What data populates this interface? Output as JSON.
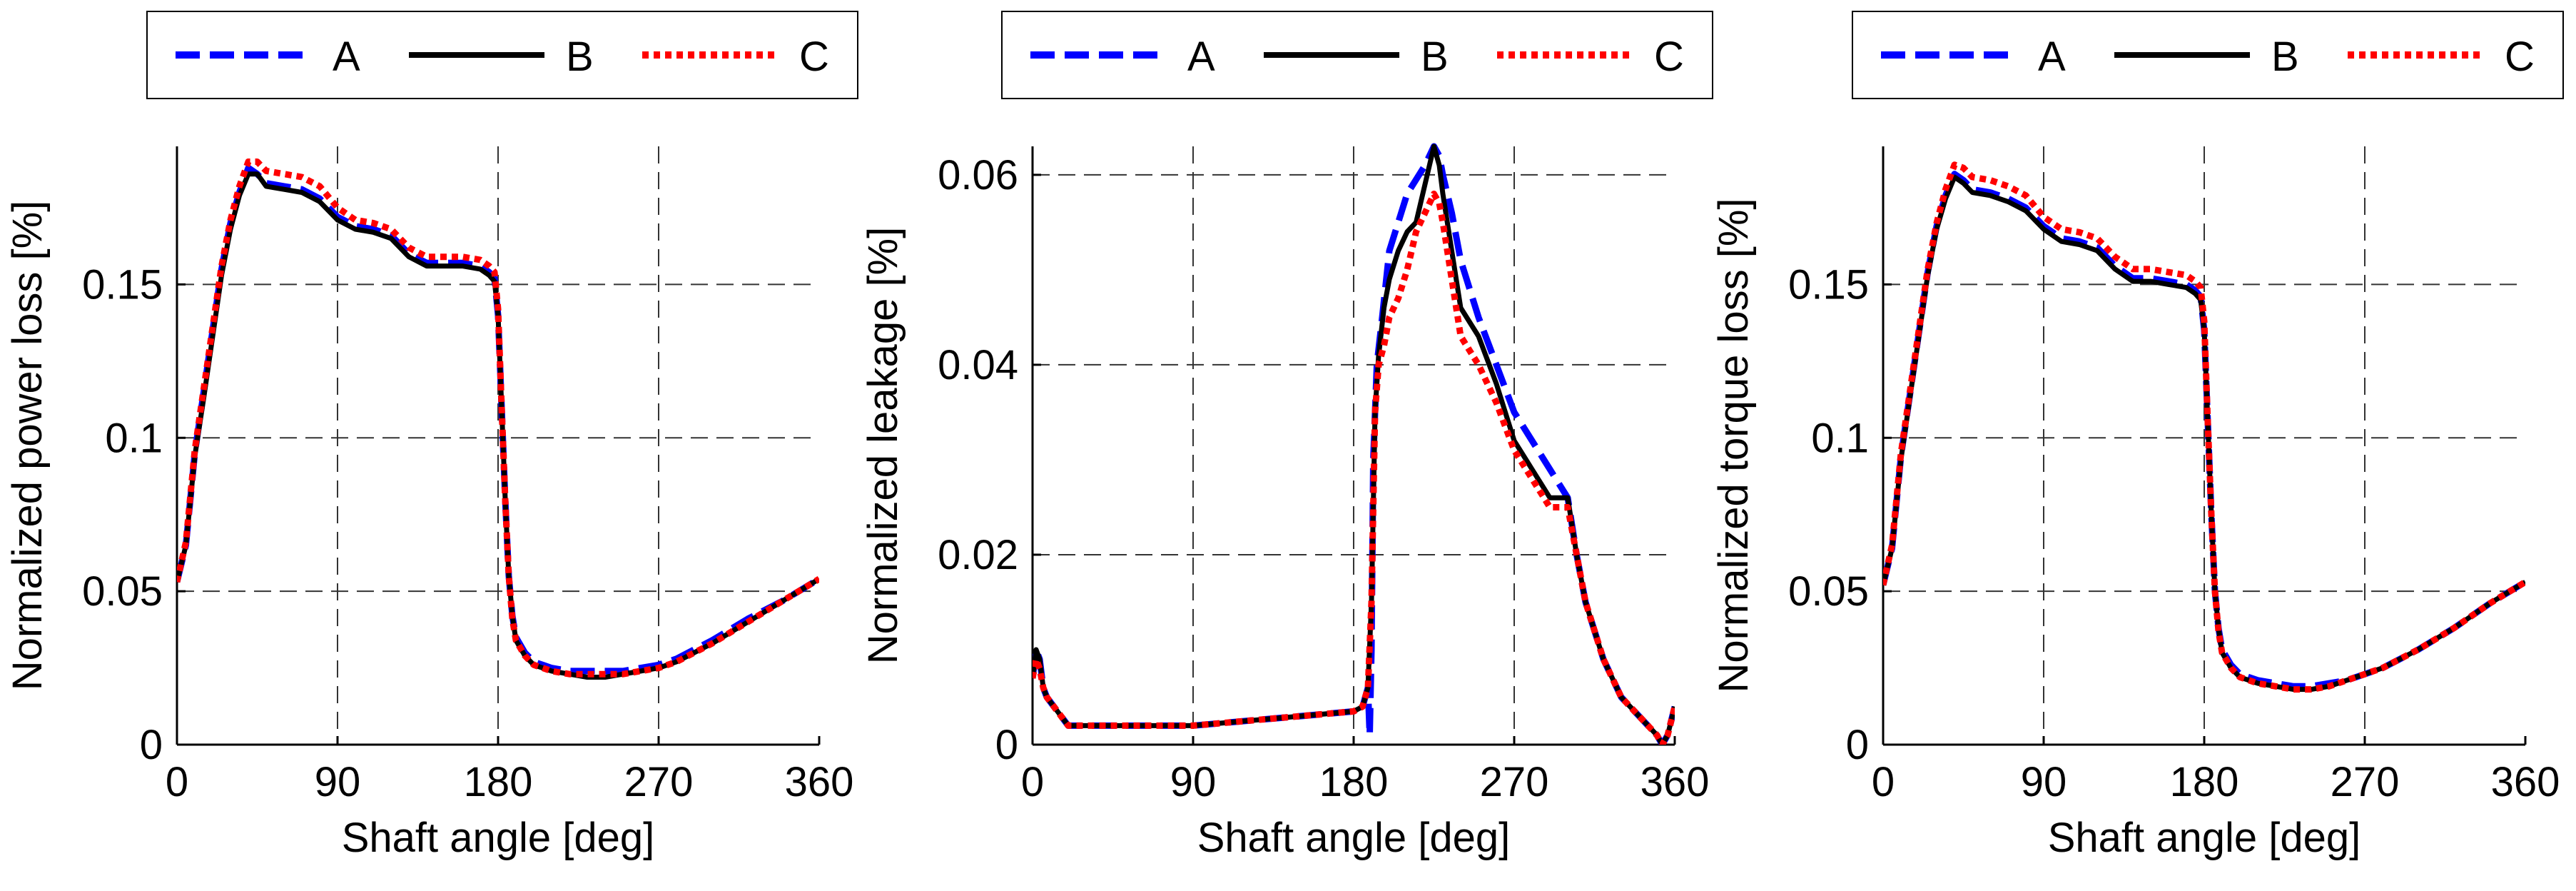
{
  "chart_data": [
    {
      "type": "line",
      "xlabel": "Shaft angle [deg]",
      "ylabel": "Normalized power loss [%]",
      "xlim": [
        0,
        360
      ],
      "ylim": [
        0,
        0.195
      ],
      "xticks": [
        0,
        90,
        180,
        270,
        360
      ],
      "yticks": [
        0,
        0.05,
        0.1,
        0.15
      ],
      "ytick_labels": [
        "0",
        "0.05",
        "0.1",
        "0.15"
      ],
      "grid": true,
      "legend": "top, horizontal, outside plot",
      "series": [
        {
          "name": "A",
          "color": "#0000ff",
          "style": "dashed",
          "x": [
            0,
            5,
            10,
            15,
            20,
            25,
            30,
            35,
            40,
            45,
            50,
            60,
            70,
            80,
            90,
            100,
            110,
            120,
            130,
            140,
            150,
            160,
            170,
            175,
            178,
            180,
            182,
            184,
            186,
            188,
            190,
            195,
            200,
            210,
            220,
            230,
            240,
            250,
            260,
            270,
            280,
            300,
            320,
            340,
            360
          ],
          "y": [
            0.053,
            0.065,
            0.095,
            0.115,
            0.135,
            0.155,
            0.17,
            0.18,
            0.188,
            0.186,
            0.183,
            0.182,
            0.181,
            0.178,
            0.172,
            0.169,
            0.168,
            0.166,
            0.16,
            0.157,
            0.157,
            0.157,
            0.156,
            0.154,
            0.152,
            0.14,
            0.11,
            0.08,
            0.055,
            0.042,
            0.035,
            0.03,
            0.027,
            0.025,
            0.024,
            0.024,
            0.024,
            0.024,
            0.025,
            0.026,
            0.028,
            0.034,
            0.041,
            0.047,
            0.054
          ]
        },
        {
          "name": "B",
          "color": "#000000",
          "style": "solid",
          "x": [
            0,
            5,
            10,
            15,
            20,
            25,
            30,
            35,
            40,
            45,
            50,
            60,
            70,
            80,
            90,
            100,
            110,
            120,
            130,
            140,
            150,
            160,
            170,
            175,
            178,
            180,
            182,
            184,
            186,
            188,
            190,
            195,
            200,
            210,
            220,
            230,
            240,
            250,
            260,
            270,
            280,
            300,
            320,
            340,
            360
          ],
          "y": [
            0.053,
            0.065,
            0.094,
            0.113,
            0.133,
            0.153,
            0.168,
            0.179,
            0.186,
            0.186,
            0.182,
            0.181,
            0.18,
            0.177,
            0.171,
            0.168,
            0.167,
            0.165,
            0.159,
            0.156,
            0.156,
            0.156,
            0.155,
            0.153,
            0.151,
            0.14,
            0.11,
            0.08,
            0.055,
            0.042,
            0.034,
            0.029,
            0.026,
            0.024,
            0.023,
            0.022,
            0.022,
            0.023,
            0.024,
            0.025,
            0.027,
            0.033,
            0.04,
            0.047,
            0.054
          ]
        },
        {
          "name": "C",
          "color": "#ff0000",
          "style": "dotted",
          "x": [
            0,
            5,
            10,
            15,
            20,
            25,
            30,
            35,
            40,
            45,
            50,
            60,
            70,
            80,
            90,
            100,
            110,
            120,
            130,
            140,
            150,
            160,
            170,
            175,
            178,
            180,
            182,
            184,
            186,
            188,
            190,
            195,
            200,
            210,
            220,
            230,
            240,
            250,
            260,
            270,
            280,
            300,
            320,
            340,
            360
          ],
          "y": [
            0.053,
            0.066,
            0.096,
            0.116,
            0.136,
            0.156,
            0.171,
            0.182,
            0.19,
            0.19,
            0.187,
            0.186,
            0.185,
            0.182,
            0.175,
            0.171,
            0.17,
            0.168,
            0.162,
            0.159,
            0.159,
            0.159,
            0.158,
            0.156,
            0.154,
            0.142,
            0.11,
            0.08,
            0.055,
            0.041,
            0.034,
            0.029,
            0.026,
            0.024,
            0.023,
            0.023,
            0.023,
            0.023,
            0.024,
            0.025,
            0.027,
            0.033,
            0.04,
            0.047,
            0.054
          ]
        }
      ]
    },
    {
      "type": "line",
      "xlabel": "Shaft angle [deg]",
      "ylabel": "Normalized leakage [%]",
      "xlim": [
        0,
        360
      ],
      "ylim": [
        0,
        0.063
      ],
      "xticks": [
        0,
        90,
        180,
        270,
        360
      ],
      "yticks": [
        0,
        0.02,
        0.04,
        0.06
      ],
      "ytick_labels": [
        "0",
        "0.02",
        "0.04",
        "0.06"
      ],
      "grid": true,
      "legend": "top, horizontal, outside plot",
      "series": [
        {
          "name": "A",
          "color": "#0000ff",
          "style": "dashed",
          "x": [
            0,
            2,
            4,
            6,
            8,
            12,
            20,
            30,
            60,
            90,
            120,
            150,
            180,
            185,
            188,
            189,
            190,
            191,
            193,
            196,
            200,
            210,
            220,
            225,
            228,
            230,
            235,
            240,
            250,
            260,
            270,
            280,
            290,
            300,
            305,
            310,
            320,
            330,
            340,
            350,
            353,
            356,
            360
          ],
          "y": [
            0.007,
            0.01,
            0.009,
            0.006,
            0.005,
            0.004,
            0.002,
            0.002,
            0.002,
            0.002,
            0.0025,
            0.003,
            0.0035,
            0.004,
            0.006,
            0.001,
            0.01,
            0.03,
            0.04,
            0.045,
            0.052,
            0.058,
            0.061,
            0.063,
            0.062,
            0.06,
            0.056,
            0.051,
            0.045,
            0.04,
            0.035,
            0.032,
            0.029,
            0.026,
            0.02,
            0.015,
            0.009,
            0.005,
            0.003,
            0.001,
            0,
            0.001,
            0.004
          ]
        },
        {
          "name": "B",
          "color": "#000000",
          "style": "solid",
          "x": [
            0,
            2,
            4,
            6,
            8,
            12,
            20,
            30,
            60,
            90,
            120,
            150,
            180,
            185,
            188,
            190,
            192,
            194,
            197,
            200,
            205,
            210,
            215,
            220,
            225,
            228,
            230,
            235,
            240,
            250,
            260,
            270,
            280,
            290,
            300,
            305,
            310,
            320,
            330,
            340,
            350,
            353,
            356,
            360
          ],
          "y": [
            0.007,
            0.01,
            0.009,
            0.006,
            0.005,
            0.004,
            0.002,
            0.002,
            0.002,
            0.002,
            0.0025,
            0.003,
            0.0035,
            0.004,
            0.006,
            0.015,
            0.035,
            0.041,
            0.046,
            0.049,
            0.052,
            0.054,
            0.055,
            0.059,
            0.063,
            0.061,
            0.058,
            0.052,
            0.046,
            0.043,
            0.038,
            0.032,
            0.029,
            0.026,
            0.026,
            0.02,
            0.015,
            0.009,
            0.005,
            0.003,
            0.001,
            0,
            0.001,
            0.004
          ]
        },
        {
          "name": "C",
          "color": "#ff0000",
          "style": "dotted",
          "x": [
            0,
            2,
            4,
            6,
            8,
            12,
            20,
            30,
            60,
            90,
            120,
            150,
            180,
            185,
            188,
            190,
            192,
            194,
            197,
            200,
            205,
            210,
            215,
            220,
            225,
            228,
            230,
            235,
            240,
            250,
            260,
            270,
            280,
            290,
            300,
            305,
            310,
            320,
            330,
            340,
            350,
            353,
            356,
            360
          ],
          "y": [
            0.007,
            0.009,
            0.008,
            0.006,
            0.005,
            0.004,
            0.002,
            0.002,
            0.002,
            0.002,
            0.0025,
            0.003,
            0.0035,
            0.004,
            0.006,
            0.015,
            0.035,
            0.04,
            0.042,
            0.045,
            0.047,
            0.05,
            0.054,
            0.056,
            0.058,
            0.057,
            0.055,
            0.049,
            0.043,
            0.04,
            0.036,
            0.031,
            0.028,
            0.025,
            0.025,
            0.02,
            0.015,
            0.009,
            0.005,
            0.003,
            0.001,
            0,
            0.001,
            0.004
          ]
        }
      ]
    },
    {
      "type": "line",
      "xlabel": "Shaft angle [deg]",
      "ylabel": "Normalized torque loss [%]",
      "xlim": [
        0,
        360
      ],
      "ylim": [
        0,
        0.195
      ],
      "xticks": [
        0,
        90,
        180,
        270,
        360
      ],
      "yticks": [
        0,
        0.05,
        0.1,
        0.15
      ],
      "ytick_labels": [
        "0",
        "0.05",
        "0.1",
        "0.15"
      ],
      "grid": true,
      "legend": "top, horizontal, outside plot",
      "series": [
        {
          "name": "A",
          "color": "#0000ff",
          "style": "dashed",
          "x": [
            0,
            5,
            10,
            15,
            20,
            25,
            30,
            35,
            40,
            45,
            50,
            60,
            70,
            80,
            90,
            100,
            110,
            120,
            130,
            140,
            150,
            160,
            170,
            175,
            178,
            180,
            182,
            184,
            186,
            188,
            190,
            195,
            200,
            210,
            220,
            230,
            240,
            250,
            260,
            270,
            280,
            300,
            320,
            340,
            360
          ],
          "y": [
            0.052,
            0.064,
            0.094,
            0.114,
            0.134,
            0.154,
            0.169,
            0.179,
            0.186,
            0.184,
            0.181,
            0.18,
            0.178,
            0.175,
            0.169,
            0.165,
            0.164,
            0.162,
            0.156,
            0.152,
            0.152,
            0.151,
            0.15,
            0.148,
            0.146,
            0.135,
            0.105,
            0.075,
            0.05,
            0.038,
            0.031,
            0.026,
            0.023,
            0.021,
            0.02,
            0.019,
            0.019,
            0.02,
            0.021,
            0.023,
            0.025,
            0.031,
            0.038,
            0.046,
            0.053
          ]
        },
        {
          "name": "B",
          "color": "#000000",
          "style": "solid",
          "x": [
            0,
            5,
            10,
            15,
            20,
            25,
            30,
            35,
            40,
            45,
            50,
            60,
            70,
            80,
            90,
            100,
            110,
            120,
            130,
            140,
            150,
            160,
            170,
            175,
            178,
            180,
            182,
            184,
            186,
            188,
            190,
            195,
            200,
            210,
            220,
            230,
            240,
            250,
            260,
            270,
            280,
            300,
            320,
            340,
            360
          ],
          "y": [
            0.052,
            0.064,
            0.093,
            0.113,
            0.133,
            0.153,
            0.168,
            0.178,
            0.185,
            0.183,
            0.18,
            0.179,
            0.177,
            0.174,
            0.168,
            0.164,
            0.163,
            0.161,
            0.155,
            0.151,
            0.151,
            0.15,
            0.149,
            0.147,
            0.145,
            0.135,
            0.105,
            0.075,
            0.05,
            0.038,
            0.03,
            0.025,
            0.022,
            0.02,
            0.019,
            0.018,
            0.018,
            0.019,
            0.021,
            0.023,
            0.025,
            0.031,
            0.038,
            0.046,
            0.053
          ]
        },
        {
          "name": "C",
          "color": "#ff0000",
          "style": "dotted",
          "x": [
            0,
            5,
            10,
            15,
            20,
            25,
            30,
            35,
            40,
            45,
            50,
            60,
            70,
            80,
            90,
            100,
            110,
            120,
            130,
            140,
            150,
            160,
            170,
            175,
            178,
            180,
            182,
            184,
            186,
            188,
            190,
            195,
            200,
            210,
            220,
            230,
            240,
            250,
            260,
            270,
            280,
            300,
            320,
            340,
            360
          ],
          "y": [
            0.052,
            0.065,
            0.095,
            0.115,
            0.135,
            0.155,
            0.17,
            0.181,
            0.189,
            0.188,
            0.185,
            0.184,
            0.182,
            0.179,
            0.172,
            0.168,
            0.167,
            0.165,
            0.159,
            0.155,
            0.155,
            0.154,
            0.153,
            0.151,
            0.149,
            0.138,
            0.105,
            0.075,
            0.05,
            0.037,
            0.03,
            0.025,
            0.022,
            0.02,
            0.019,
            0.018,
            0.018,
            0.019,
            0.021,
            0.023,
            0.025,
            0.031,
            0.038,
            0.046,
            0.053
          ]
        }
      ]
    }
  ]
}
